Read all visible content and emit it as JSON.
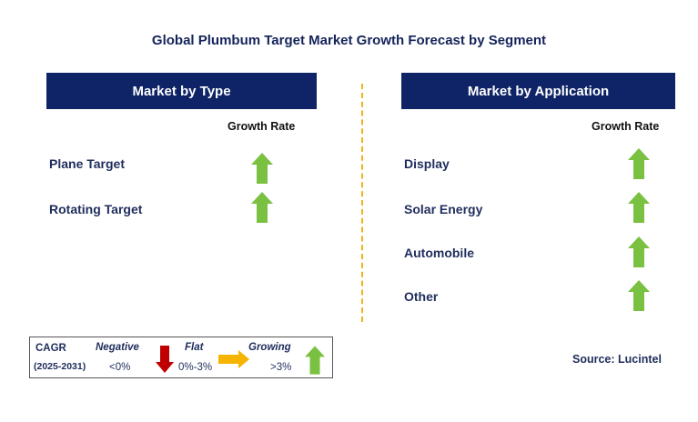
{
  "title": "Global Plumbum Target Market Growth Forecast by Segment",
  "left_panel": {
    "header": "Market by Type",
    "growth_label": "Growth Rate",
    "rows": [
      {
        "label": "Plane Target",
        "trend": "growing"
      },
      {
        "label": "Rotating Target",
        "trend": "growing"
      }
    ]
  },
  "right_panel": {
    "header": "Market by Application",
    "growth_label": "Growth Rate",
    "rows": [
      {
        "label": "Display",
        "trend": "growing"
      },
      {
        "label": "Solar Energy",
        "trend": "growing"
      },
      {
        "label": "Automobile",
        "trend": "growing"
      },
      {
        "label": "Other",
        "trend": "growing"
      }
    ]
  },
  "legend": {
    "cagr_label": "CAGR",
    "period": "(2025-2031)",
    "negative_label": "Negative",
    "negative_value": "<0%",
    "flat_label": "Flat",
    "flat_value": "0%-3%",
    "growing_label": "Growing",
    "growing_value": ">3%"
  },
  "source": "Source: Lucintel",
  "colors": {
    "header_bg": "#0f2466",
    "arrow_green": "#7ac142",
    "arrow_red": "#c00000",
    "arrow_yellow": "#f5b400",
    "divider": "#f2b21a"
  }
}
